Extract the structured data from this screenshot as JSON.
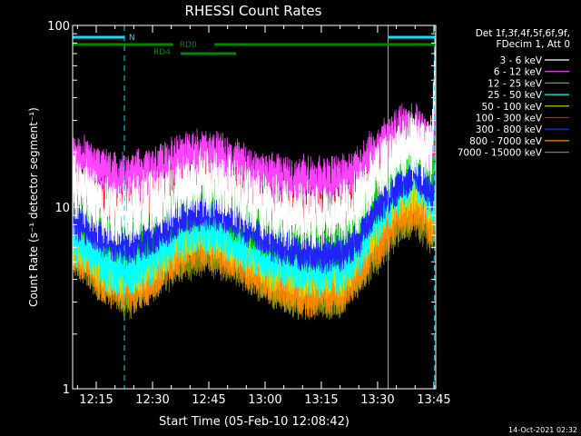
{
  "chart_data": {
    "type": "line",
    "title": "RHESSI Count Rates",
    "xlabel": "Start Time (05-Feb-10 12:08:42)",
    "ylabel": "Count Rate (s⁻¹ detector segment⁻¹)",
    "yscale": "log",
    "ylim": [
      1,
      100
    ],
    "xlim_minutes": [
      8.7,
      105.5
    ],
    "x_unit": "minutes after 12:00",
    "x_ticks": [
      {
        "label": "12:15",
        "minute": 15
      },
      {
        "label": "12:30",
        "minute": 30
      },
      {
        "label": "12:45",
        "minute": 45
      },
      {
        "label": "13:00",
        "minute": 60
      },
      {
        "label": "13:15",
        "minute": 75
      },
      {
        "label": "13:30",
        "minute": 90
      },
      {
        "label": "13:45",
        "minute": 105
      }
    ],
    "y_ticks": [
      {
        "label": "1",
        "value": 1
      },
      {
        "label": "10",
        "value": 10
      },
      {
        "label": "100",
        "value": 100
      }
    ],
    "legend_position": "right",
    "legend_header": [
      "Det 1f,3f,4f,5f,6f,9f,",
      "FDecim 1, Att 0"
    ],
    "series": [
      {
        "name": "3 - 6 keV",
        "color": "#ffffff",
        "noise": 0.16,
        "points": [
          [
            8.7,
            13.5
          ],
          [
            12,
            12
          ],
          [
            16,
            10
          ],
          [
            20,
            9.2
          ],
          [
            24,
            9.5
          ],
          [
            30,
            10.5
          ],
          [
            36,
            12
          ],
          [
            41,
            13.5
          ],
          [
            45,
            13.6
          ],
          [
            50,
            12.5
          ],
          [
            56,
            10.8
          ],
          [
            62,
            9.6
          ],
          [
            68,
            9.1
          ],
          [
            74,
            8.9
          ],
          [
            80,
            9.1
          ],
          [
            85,
            11
          ],
          [
            88,
            14
          ],
          [
            92,
            17
          ],
          [
            96,
            20
          ],
          [
            100,
            22
          ],
          [
            103,
            19
          ],
          [
            104.5,
            21
          ],
          [
            105.3,
            60
          ]
        ]
      },
      {
        "name": "6 - 12 keV",
        "color": "#ff44ff",
        "noise": 0.12,
        "points": [
          [
            8.7,
            18.5
          ],
          [
            12,
            17.5
          ],
          [
            16,
            15.5
          ],
          [
            20,
            14.5
          ],
          [
            24,
            14.5
          ],
          [
            30,
            15.5
          ],
          [
            36,
            18
          ],
          [
            41,
            19.5
          ],
          [
            45,
            19.5
          ],
          [
            50,
            18
          ],
          [
            56,
            16
          ],
          [
            62,
            14.5
          ],
          [
            68,
            13.8
          ],
          [
            74,
            13.8
          ],
          [
            80,
            14.3
          ],
          [
            85,
            16
          ],
          [
            88,
            19
          ],
          [
            92,
            22.5
          ],
          [
            96,
            26
          ],
          [
            100,
            27
          ],
          [
            103,
            23.5
          ],
          [
            104.5,
            20
          ],
          [
            105.3,
            30
          ]
        ]
      },
      {
        "name": "12 - 25 keV",
        "color": "#00dd00",
        "noise": 0.12,
        "points": [
          [
            8.7,
            10
          ],
          [
            12,
            8.8
          ],
          [
            16,
            7.5
          ],
          [
            20,
            6.6
          ],
          [
            24,
            6.5
          ],
          [
            30,
            7.5
          ],
          [
            36,
            9.2
          ],
          [
            41,
            10.2
          ],
          [
            45,
            10.4
          ],
          [
            50,
            9.5
          ],
          [
            56,
            8
          ],
          [
            62,
            6.9
          ],
          [
            68,
            6.3
          ],
          [
            74,
            6.1
          ],
          [
            80,
            6.3
          ],
          [
            85,
            8
          ],
          [
            88,
            10.5
          ],
          [
            92,
            13.5
          ],
          [
            96,
            17
          ],
          [
            100,
            19.5
          ],
          [
            103,
            16.5
          ],
          [
            104.5,
            14
          ],
          [
            105.3,
            20
          ]
        ]
      },
      {
        "name": "25 - 50 keV",
        "color": "#00ffff",
        "noise": 0.14,
        "points": [
          [
            8.7,
            7
          ],
          [
            12,
            6.2
          ],
          [
            16,
            5.3
          ],
          [
            20,
            4.8
          ],
          [
            24,
            4.6
          ],
          [
            30,
            5.4
          ],
          [
            36,
            7
          ],
          [
            41,
            8
          ],
          [
            45,
            8.1
          ],
          [
            50,
            7.3
          ],
          [
            56,
            6.1
          ],
          [
            62,
            5.2
          ],
          [
            68,
            4.8
          ],
          [
            74,
            4.6
          ],
          [
            80,
            4.8
          ],
          [
            85,
            6
          ],
          [
            88,
            8
          ],
          [
            92,
            10.5
          ],
          [
            96,
            13
          ],
          [
            100,
            15
          ],
          [
            103,
            12.5
          ],
          [
            104.5,
            11
          ],
          [
            105.3,
            14
          ]
        ]
      },
      {
        "name": "50 - 100 keV",
        "color": "#dddd00",
        "noise": 0.13,
        "points": [
          [
            8.7,
            6.5
          ],
          [
            12,
            5.8
          ],
          [
            16,
            5
          ],
          [
            20,
            4.5
          ],
          [
            24,
            4.3
          ],
          [
            30,
            5
          ],
          [
            36,
            6.5
          ],
          [
            41,
            7.5
          ],
          [
            45,
            7.6
          ],
          [
            50,
            6.8
          ],
          [
            56,
            5.7
          ],
          [
            62,
            4.9
          ],
          [
            68,
            4.5
          ],
          [
            74,
            4.3
          ],
          [
            80,
            4.5
          ],
          [
            85,
            5.6
          ],
          [
            88,
            7.4
          ],
          [
            92,
            9.6
          ],
          [
            96,
            12
          ],
          [
            100,
            13.6
          ],
          [
            103,
            11.5
          ],
          [
            104.5,
            10
          ],
          [
            105.3,
            12
          ]
        ]
      },
      {
        "name": "100 - 300 keV",
        "color": "#ff0000",
        "noise": 0.09,
        "points": [
          [
            8.7,
            14.5
          ],
          [
            12,
            13.5
          ],
          [
            16,
            11.8
          ],
          [
            20,
            11
          ],
          [
            24,
            10.8
          ],
          [
            30,
            11.5
          ],
          [
            36,
            14
          ],
          [
            41,
            16
          ],
          [
            45,
            16.3
          ],
          [
            50,
            15.2
          ],
          [
            56,
            13
          ],
          [
            62,
            11.3
          ],
          [
            68,
            10.3
          ],
          [
            74,
            9.8
          ],
          [
            80,
            10
          ],
          [
            85,
            11.8
          ],
          [
            88,
            14.5
          ],
          [
            92,
            18
          ],
          [
            96,
            21
          ],
          [
            100,
            22.5
          ],
          [
            103,
            19.5
          ],
          [
            104.5,
            17
          ],
          [
            105.3,
            22
          ]
        ]
      },
      {
        "name": "300 - 800 keV",
        "color": "#2222ff",
        "noise": 0.09,
        "points": [
          [
            8.7,
            8.7
          ],
          [
            12,
            7.8
          ],
          [
            16,
            6.9
          ],
          [
            20,
            6.3
          ],
          [
            24,
            6.1
          ],
          [
            30,
            6.8
          ],
          [
            36,
            8.3
          ],
          [
            41,
            9.3
          ],
          [
            45,
            9.5
          ],
          [
            50,
            8.8
          ],
          [
            56,
            7.5
          ],
          [
            62,
            6.3
          ],
          [
            68,
            5.7
          ],
          [
            74,
            5.5
          ],
          [
            80,
            5.6
          ],
          [
            85,
            6.7
          ],
          [
            88,
            8.6
          ],
          [
            92,
            11
          ],
          [
            96,
            13.5
          ],
          [
            100,
            15
          ],
          [
            103,
            13
          ],
          [
            104.5,
            11.5
          ],
          [
            105.3,
            13.5
          ]
        ]
      },
      {
        "name": "800 - 7000 keV",
        "color": "#ff8800",
        "noise": 0.13,
        "points": [
          [
            8.7,
            6.2
          ],
          [
            12,
            5.3
          ],
          [
            16,
            4.3
          ],
          [
            20,
            3.8
          ],
          [
            24,
            3.6
          ],
          [
            30,
            4.2
          ],
          [
            36,
            5.5
          ],
          [
            41,
            6.3
          ],
          [
            45,
            6.4
          ],
          [
            50,
            5.8
          ],
          [
            56,
            4.8
          ],
          [
            62,
            4
          ],
          [
            68,
            3.6
          ],
          [
            74,
            3.5
          ],
          [
            80,
            3.6
          ],
          [
            85,
            4.4
          ],
          [
            88,
            5.9
          ],
          [
            92,
            7.6
          ],
          [
            96,
            9.4
          ],
          [
            100,
            10.5
          ],
          [
            103,
            9
          ],
          [
            104.5,
            8
          ],
          [
            105.3,
            9.5
          ]
        ]
      },
      {
        "name": "7000 - 15000 keV",
        "color": "#888800",
        "noise": 0.1,
        "points": [
          [
            8.7,
            5.5
          ],
          [
            16,
            3.9
          ],
          [
            24,
            3.2
          ],
          [
            36,
            4.8
          ],
          [
            45,
            5.6
          ],
          [
            56,
            4.2
          ],
          [
            68,
            3.1
          ],
          [
            80,
            3.2
          ],
          [
            88,
            5
          ],
          [
            96,
            8
          ],
          [
            100,
            9
          ],
          [
            104.5,
            7
          ],
          [
            105.3,
            8
          ]
        ]
      }
    ],
    "annotations": {
      "attenuator_bar": {
        "label": "N",
        "color": "#00e5ff",
        "segments": [
          [
            8.7,
            22.5
          ],
          [
            92.8,
            105.5
          ]
        ]
      },
      "decimation_rd0": {
        "label": "RD0",
        "color": "#008800",
        "segments": [
          [
            8.7,
            105.5
          ]
        ]
      },
      "decimation_rd4": {
        "label": "RD4",
        "color": "#008800",
        "segments": [
          [
            37.5,
            52.3
          ]
        ]
      },
      "solid_verticals_minutes": [
        8.7,
        92.8
      ],
      "dashed_verticals_minutes": [
        22.5,
        105.2
      ]
    },
    "footer_timestamp": "14-Oct-2021 02:32"
  }
}
